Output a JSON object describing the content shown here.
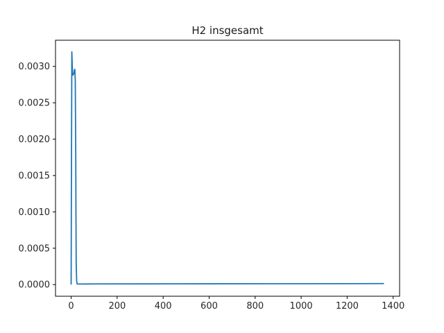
{
  "chart_data": {
    "type": "line",
    "title": "H2 insgesamt",
    "xlabel": "",
    "ylabel": "",
    "xlim": [
      -68,
      1428
    ],
    "ylim": [
      -0.00016,
      0.00336
    ],
    "xticks": [
      0,
      200,
      400,
      600,
      800,
      1000,
      1200,
      1400
    ],
    "xtick_labels": [
      "0",
      "200",
      "400",
      "600",
      "800",
      "1000",
      "1200",
      "1400"
    ],
    "yticks": [
      0.0,
      0.0005,
      0.001,
      0.0015,
      0.002,
      0.0025,
      0.003
    ],
    "ytick_labels": [
      "0.0000",
      "0.0005",
      "0.0010",
      "0.0015",
      "0.0020",
      "0.0025",
      "0.0030"
    ],
    "grid": false,
    "series": [
      {
        "color": "#1f77b4",
        "x": [
          0,
          1,
          3,
          6,
          8,
          10,
          12,
          14,
          16,
          18,
          20,
          21,
          22,
          24,
          26,
          28,
          35,
          100,
          300,
          600,
          900,
          1200,
          1360
        ],
        "y": [
          0.0,
          0.0012,
          0.0032,
          0.0029,
          0.00288,
          0.0029,
          0.0029,
          0.00295,
          0.00296,
          0.0028,
          0.0018,
          0.0009,
          0.0003,
          5e-05,
          1e-05,
          8e-06,
          8e-06,
          9e-06,
          1e-05,
          1.1e-05,
          1.2e-05,
          1.3e-05,
          1.4e-05
        ]
      }
    ]
  }
}
